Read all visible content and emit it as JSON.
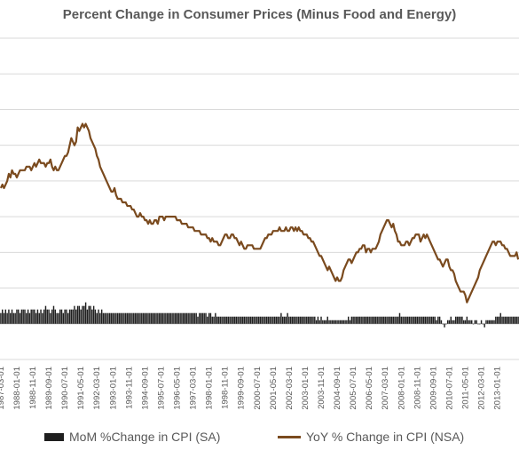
{
  "chart_data": {
    "type": "bar+line",
    "title": "Percent Change in Consumer Prices (Minus Food and Energy)",
    "legend_position": "bottom",
    "grid": true,
    "ylim": [
      -1,
      8
    ],
    "x_tick_labels": [
      "1987-03-01",
      "1988-01-01",
      "1988-11-01",
      "1989-09-01",
      "1990-07-01",
      "1991-05-01",
      "1992-03-01",
      "1993-01-01",
      "1993-11-01",
      "1994-09-01",
      "1995-07-01",
      "1996-05-01",
      "1997-03-01",
      "1998-01-01",
      "1998-11-01",
      "1999-09-01",
      "2000-07-01",
      "2001-05-01",
      "2002-03-01",
      "2003-01-01",
      "2003-11-01",
      "2004-09-01",
      "2005-07-01",
      "2006-05-01",
      "2007-03-01",
      "2008-01-01",
      "2008-11-01",
      "2009-09-01",
      "2010-07-01",
      "2011-05-01",
      "2012-03-01",
      "2013-01-01"
    ],
    "x_start": "1987-03",
    "series": [
      {
        "name": "MoM %Change in CPI (SA)",
        "kind": "bar",
        "color": "#1f1f1f",
        "values": [
          0.3,
          0.4,
          0.3,
          0.4,
          0.3,
          0.4,
          0.3,
          0.4,
          0.3,
          0.3,
          0.4,
          0.4,
          0.3,
          0.4,
          0.4,
          0.4,
          0.3,
          0.4,
          0.3,
          0.4,
          0.4,
          0.4,
          0.3,
          0.4,
          0.3,
          0.4,
          0.3,
          0.4,
          0.5,
          0.4,
          0.4,
          0.3,
          0.4,
          0.5,
          0.4,
          0.3,
          0.3,
          0.4,
          0.4,
          0.3,
          0.4,
          0.4,
          0.3,
          0.4,
          0.4,
          0.4,
          0.5,
          0.4,
          0.5,
          0.5,
          0.4,
          0.5,
          0.5,
          0.6,
          0.4,
          0.5,
          0.5,
          0.4,
          0.5,
          0.4,
          0.3,
          0.4,
          0.3,
          0.4,
          0.3,
          0.3,
          0.3,
          0.3,
          0.3,
          0.3,
          0.3,
          0.3,
          0.3,
          0.3,
          0.3,
          0.3,
          0.3,
          0.3,
          0.3,
          0.3,
          0.3,
          0.3,
          0.3,
          0.3,
          0.3,
          0.3,
          0.3,
          0.3,
          0.3,
          0.3,
          0.3,
          0.3,
          0.3,
          0.3,
          0.3,
          0.3,
          0.3,
          0.3,
          0.3,
          0.3,
          0.3,
          0.3,
          0.3,
          0.3,
          0.3,
          0.3,
          0.3,
          0.3,
          0.3,
          0.3,
          0.3,
          0.3,
          0.3,
          0.3,
          0.3,
          0.3,
          0.3,
          0.3,
          0.3,
          0.3,
          0.3,
          0.3,
          0.3,
          0.2,
          0.3,
          0.3,
          0.3,
          0.3,
          0.3,
          0.2,
          0.3,
          0.3,
          0.2,
          0.2,
          0.3,
          0.2,
          0.2,
          0.2,
          0.2,
          0.2,
          0.2,
          0.2,
          0.2,
          0.2,
          0.2,
          0.2,
          0.2,
          0.2,
          0.2,
          0.2,
          0.2,
          0.2,
          0.2,
          0.2,
          0.2,
          0.2,
          0.2,
          0.2,
          0.2,
          0.2,
          0.2,
          0.2,
          0.2,
          0.2,
          0.2,
          0.2,
          0.2,
          0.2,
          0.2,
          0.2,
          0.2,
          0.2,
          0.2,
          0.2,
          0.2,
          0.3,
          0.2,
          0.2,
          0.2,
          0.3,
          0.2,
          0.2,
          0.2,
          0.2,
          0.2,
          0.2,
          0.2,
          0.2,
          0.2,
          0.2,
          0.2,
          0.2,
          0.2,
          0.2,
          0.2,
          0.2,
          0.2,
          0.1,
          0.2,
          0.1,
          0.2,
          0.1,
          0.1,
          0.1,
          0.2,
          0.1,
          0.1,
          0.1,
          0.1,
          0.1,
          0.1,
          0.1,
          0.1,
          0.1,
          0.1,
          0.1,
          0.1,
          0.2,
          0.1,
          0.2,
          0.2,
          0.2,
          0.2,
          0.2,
          0.2,
          0.2,
          0.2,
          0.2,
          0.2,
          0.2,
          0.2,
          0.2,
          0.2,
          0.2,
          0.2,
          0.2,
          0.2,
          0.2,
          0.2,
          0.2,
          0.2,
          0.2,
          0.2,
          0.2,
          0.2,
          0.2,
          0.2,
          0.2,
          0.2,
          0.3,
          0.2,
          0.2,
          0.2,
          0.2,
          0.2,
          0.2,
          0.2,
          0.2,
          0.2,
          0.2,
          0.2,
          0.2,
          0.2,
          0.2,
          0.2,
          0.2,
          0.2,
          0.2,
          0.2,
          0.2,
          0.2,
          0.2,
          0.1,
          0.2,
          0.2,
          0.1,
          0.0,
          -0.1,
          0.0,
          0.1,
          0.1,
          0.2,
          0.1,
          0.1,
          0.2,
          0.2,
          0.2,
          0.2,
          0.2,
          0.1,
          0.1,
          0.2,
          0.1,
          0.1,
          0.1,
          0.0,
          0.1,
          0.1,
          0.0,
          0.0,
          0.1,
          0.0,
          -0.1,
          0.1,
          0.1,
          0.1,
          0.1,
          0.1,
          0.1,
          0.2,
          0.2,
          0.2,
          0.3,
          0.2,
          0.2,
          0.2,
          0.2,
          0.2,
          0.2,
          0.2,
          0.2,
          0.2,
          0.2,
          0.2,
          0.2,
          0.2,
          0.2,
          0.1,
          0.2,
          0.2,
          0.2,
          0.2,
          0.1,
          0.2,
          0.1,
          0.2,
          0.2
        ]
      },
      {
        "name": "YoY % Change in CPI (NSA)",
        "kind": "line",
        "color": "#7a4a1e",
        "values": [
          3.8,
          3.9,
          3.8,
          3.9,
          4.0,
          4.2,
          4.1,
          4.3,
          4.2,
          4.2,
          4.1,
          4.2,
          4.3,
          4.3,
          4.3,
          4.3,
          4.4,
          4.4,
          4.4,
          4.3,
          4.4,
          4.5,
          4.4,
          4.5,
          4.6,
          4.5,
          4.5,
          4.5,
          4.4,
          4.5,
          4.5,
          4.6,
          4.4,
          4.3,
          4.4,
          4.3,
          4.3,
          4.4,
          4.5,
          4.6,
          4.7,
          4.7,
          4.8,
          5.0,
          5.2,
          5.1,
          5.0,
          5.1,
          5.5,
          5.4,
          5.5,
          5.6,
          5.5,
          5.6,
          5.5,
          5.4,
          5.2,
          5.1,
          5.0,
          4.9,
          4.7,
          4.6,
          4.4,
          4.3,
          4.2,
          4.1,
          4.0,
          3.9,
          3.8,
          3.7,
          3.7,
          3.8,
          3.6,
          3.5,
          3.5,
          3.5,
          3.4,
          3.4,
          3.4,
          3.3,
          3.3,
          3.3,
          3.2,
          3.2,
          3.1,
          3.0,
          3.0,
          3.1,
          3.0,
          3.0,
          2.9,
          2.9,
          2.8,
          2.9,
          2.8,
          2.8,
          2.9,
          2.9,
          2.8,
          3.0,
          3.0,
          3.0,
          2.9,
          3.0,
          3.0,
          3.0,
          3.0,
          3.0,
          3.0,
          3.0,
          2.9,
          2.9,
          2.9,
          2.8,
          2.8,
          2.8,
          2.8,
          2.7,
          2.7,
          2.7,
          2.7,
          2.6,
          2.6,
          2.6,
          2.6,
          2.5,
          2.5,
          2.5,
          2.5,
          2.4,
          2.4,
          2.3,
          2.4,
          2.3,
          2.3,
          2.3,
          2.2,
          2.2,
          2.3,
          2.4,
          2.5,
          2.5,
          2.4,
          2.4,
          2.5,
          2.5,
          2.4,
          2.4,
          2.3,
          2.2,
          2.3,
          2.2,
          2.1,
          2.1,
          2.2,
          2.2,
          2.2,
          2.2,
          2.1,
          2.1,
          2.1,
          2.1,
          2.1,
          2.2,
          2.3,
          2.4,
          2.4,
          2.5,
          2.5,
          2.5,
          2.6,
          2.6,
          2.6,
          2.6,
          2.7,
          2.6,
          2.6,
          2.6,
          2.7,
          2.6,
          2.6,
          2.7,
          2.7,
          2.6,
          2.7,
          2.6,
          2.7,
          2.6,
          2.6,
          2.5,
          2.5,
          2.5,
          2.4,
          2.4,
          2.3,
          2.3,
          2.2,
          2.1,
          2.0,
          1.9,
          1.9,
          1.8,
          1.7,
          1.6,
          1.5,
          1.6,
          1.5,
          1.4,
          1.3,
          1.2,
          1.3,
          1.2,
          1.2,
          1.3,
          1.5,
          1.6,
          1.7,
          1.8,
          1.8,
          1.7,
          1.8,
          1.9,
          2.0,
          2.0,
          2.1,
          2.1,
          2.2,
          2.2,
          2.0,
          2.1,
          2.1,
          2.0,
          2.1,
          2.1,
          2.1,
          2.2,
          2.3,
          2.5,
          2.6,
          2.7,
          2.8,
          2.9,
          2.9,
          2.8,
          2.7,
          2.8,
          2.6,
          2.5,
          2.3,
          2.3,
          2.2,
          2.2,
          2.2,
          2.3,
          2.3,
          2.2,
          2.3,
          2.4,
          2.4,
          2.5,
          2.5,
          2.5,
          2.3,
          2.4,
          2.5,
          2.4,
          2.5,
          2.4,
          2.3,
          2.2,
          2.1,
          2.0,
          1.9,
          1.8,
          1.8,
          1.7,
          1.6,
          1.7,
          1.8,
          1.8,
          1.6,
          1.5,
          1.5,
          1.4,
          1.2,
          1.1,
          1.0,
          0.9,
          0.9,
          0.9,
          0.8,
          0.6,
          0.7,
          0.8,
          0.9,
          1.0,
          1.1,
          1.2,
          1.3,
          1.5,
          1.6,
          1.7,
          1.8,
          1.9,
          2.0,
          2.1,
          2.2,
          2.3,
          2.3,
          2.2,
          2.3,
          2.3,
          2.3,
          2.2,
          2.2,
          2.1,
          2.1,
          2.0,
          1.9,
          1.9,
          1.9,
          1.9,
          2.0,
          1.8
        ]
      }
    ]
  }
}
